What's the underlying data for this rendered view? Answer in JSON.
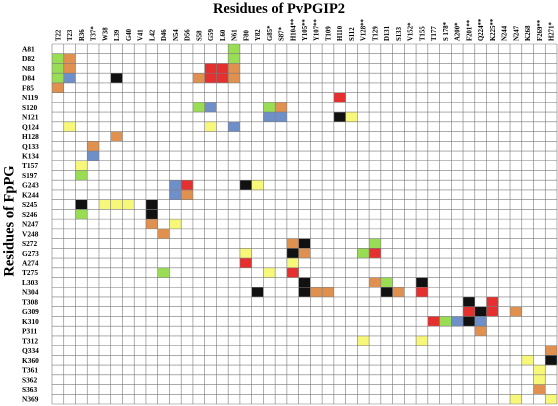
{
  "titles": {
    "top": "Residues of PvPGIP2",
    "side": "Residues of FpPG"
  },
  "colors": {
    "green": "#99dd55",
    "orange": "#e0904f",
    "blue": "#6f8fc9",
    "black": "#111111",
    "red": "#e53030",
    "yellow": "#f7f77a",
    "grid": "#7a7a7a"
  },
  "columns": [
    "T22",
    "T23",
    "R36",
    "T37*",
    "W38",
    "L39",
    "G40",
    "V41",
    "L42",
    "D46",
    "N54",
    "D56",
    "S58",
    "G59",
    "L60",
    "N61",
    "F80",
    "Y82",
    "G85*",
    "S87*",
    "H104**",
    "Y105**",
    "Y107**",
    "T109",
    "H110",
    "S112",
    "V128**",
    "T129",
    "D131",
    "S133",
    "V152*",
    "T155",
    "T177",
    "S 178*",
    "A200*",
    "F201**",
    "Q224**",
    "K225**",
    "N244",
    "N247",
    "K268",
    "F269**",
    "H271*"
  ],
  "rows": [
    "A81",
    "D82",
    "N83",
    "D84",
    "F85",
    "N119",
    "S120",
    "N121",
    "Q124",
    "H128",
    "Q133",
    "K134",
    "T157",
    "S197",
    "G243",
    "K244",
    "S245",
    "S246",
    "N247",
    "V248",
    "S272",
    "G273",
    "A274",
    "T275",
    "L303",
    "N304",
    "T308",
    "G309",
    "K310",
    "P311",
    "T312",
    "Q334",
    "K360",
    "T361",
    "S362",
    "S363",
    "N369"
  ],
  "cells": [
    [
      "A81",
      "N61",
      "green"
    ],
    [
      "D82",
      "T22",
      "green"
    ],
    [
      "D82",
      "T23",
      "orange"
    ],
    [
      "D82",
      "N61",
      "green"
    ],
    [
      "N83",
      "T22",
      "green"
    ],
    [
      "N83",
      "T23",
      "orange"
    ],
    [
      "N83",
      "G59",
      "red"
    ],
    [
      "N83",
      "L60",
      "red"
    ],
    [
      "N83",
      "N61",
      "orange"
    ],
    [
      "D84",
      "T22",
      "green"
    ],
    [
      "D84",
      "T23",
      "blue"
    ],
    [
      "D84",
      "L39",
      "black"
    ],
    [
      "D84",
      "S58",
      "orange"
    ],
    [
      "D84",
      "G59",
      "red"
    ],
    [
      "D84",
      "L60",
      "red"
    ],
    [
      "D84",
      "N61",
      "orange"
    ],
    [
      "F85",
      "T22",
      "orange"
    ],
    [
      "N119",
      "H110",
      "red"
    ],
    [
      "S120",
      "S58",
      "green"
    ],
    [
      "S120",
      "G59",
      "blue"
    ],
    [
      "S120",
      "G85*",
      "green"
    ],
    [
      "S120",
      "S87*",
      "orange"
    ],
    [
      "N121",
      "G85*",
      "blue"
    ],
    [
      "N121",
      "S87*",
      "blue"
    ],
    [
      "N121",
      "H110",
      "black"
    ],
    [
      "N121",
      "S112",
      "yellow"
    ],
    [
      "Q124",
      "T23",
      "yellow"
    ],
    [
      "Q124",
      "G59",
      "yellow"
    ],
    [
      "Q124",
      "N61",
      "blue"
    ],
    [
      "H128",
      "L39",
      "orange"
    ],
    [
      "Q133",
      "T37*",
      "orange"
    ],
    [
      "K134",
      "T37*",
      "blue"
    ],
    [
      "T157",
      "R36",
      "yellow"
    ],
    [
      "S197",
      "R36",
      "green"
    ],
    [
      "G243",
      "N54",
      "blue"
    ],
    [
      "G243",
      "D56",
      "red"
    ],
    [
      "G243",
      "F80",
      "black"
    ],
    [
      "G243",
      "Y82",
      "yellow"
    ],
    [
      "K244",
      "N54",
      "blue"
    ],
    [
      "K244",
      "D56",
      "orange"
    ],
    [
      "S245",
      "R36",
      "black"
    ],
    [
      "S245",
      "W38",
      "yellow"
    ],
    [
      "S245",
      "L39",
      "yellow"
    ],
    [
      "S245",
      "G40",
      "yellow"
    ],
    [
      "S245",
      "L42",
      "black"
    ],
    [
      "S246",
      "R36",
      "green"
    ],
    [
      "S246",
      "L42",
      "black"
    ],
    [
      "N247",
      "L42",
      "orange"
    ],
    [
      "N247",
      "N54",
      "yellow"
    ],
    [
      "V248",
      "D46",
      "orange"
    ],
    [
      "S272",
      "H104**",
      "orange"
    ],
    [
      "S272",
      "Y105**",
      "black"
    ],
    [
      "S272",
      "T129",
      "green"
    ],
    [
      "G273",
      "F80",
      "yellow"
    ],
    [
      "G273",
      "H104**",
      "black"
    ],
    [
      "G273",
      "Y105**",
      "orange"
    ],
    [
      "G273",
      "V128**",
      "green"
    ],
    [
      "G273",
      "T129",
      "red"
    ],
    [
      "A274",
      "F80",
      "red"
    ],
    [
      "A274",
      "H104**",
      "yellow"
    ],
    [
      "T275",
      "D46",
      "green"
    ],
    [
      "T275",
      "G85*",
      "yellow"
    ],
    [
      "T275",
      "H104**",
      "red"
    ],
    [
      "L303",
      "Y105**",
      "black"
    ],
    [
      "L303",
      "T129",
      "orange"
    ],
    [
      "L303",
      "D131",
      "green"
    ],
    [
      "L303",
      "T155",
      "black"
    ],
    [
      "N304",
      "Y82",
      "black"
    ],
    [
      "N304",
      "Y105**",
      "black"
    ],
    [
      "N304",
      "Y107**",
      "orange"
    ],
    [
      "N304",
      "T109",
      "orange"
    ],
    [
      "N304",
      "D131",
      "black"
    ],
    [
      "N304",
      "S133",
      "orange"
    ],
    [
      "N304",
      "T155",
      "red"
    ],
    [
      "T308",
      "F201**",
      "black"
    ],
    [
      "T308",
      "K225**",
      "red"
    ],
    [
      "G309",
      "F201**",
      "red"
    ],
    [
      "G309",
      "Q224**",
      "black"
    ],
    [
      "G309",
      "K225**",
      "red"
    ],
    [
      "G309",
      "N247",
      "orange"
    ],
    [
      "K310",
      "T177",
      "red"
    ],
    [
      "K310",
      "S 178*",
      "green"
    ],
    [
      "K310",
      "A200*",
      "blue"
    ],
    [
      "K310",
      "F201**",
      "black"
    ],
    [
      "K310",
      "Q224**",
      "blue"
    ],
    [
      "P311",
      "Q224**",
      "orange"
    ],
    [
      "T312",
      "V128**",
      "yellow"
    ],
    [
      "T312",
      "T155",
      "yellow"
    ],
    [
      "Q334",
      "H271*",
      "orange"
    ],
    [
      "K360",
      "K268",
      "yellow"
    ],
    [
      "K360",
      "H271*",
      "black"
    ],
    [
      "T361",
      "F269**",
      "yellow"
    ],
    [
      "S362",
      "F269**",
      "yellow"
    ],
    [
      "S363",
      "F269**",
      "orange"
    ],
    [
      "N369",
      "N247",
      "yellow"
    ],
    [
      "N369",
      "H271*",
      "yellow"
    ]
  ]
}
